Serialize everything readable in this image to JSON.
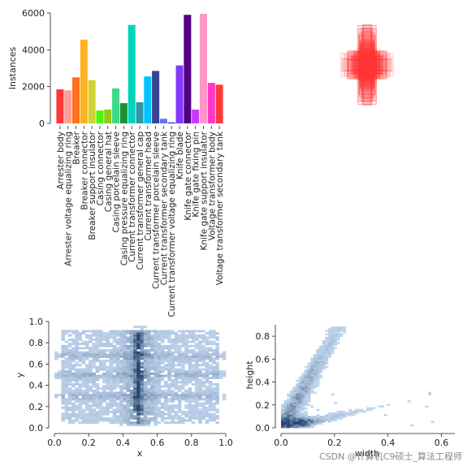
{
  "watermark": "CSDN @计算机C9硕士_算法工程师",
  "chart_data": [
    {
      "type": "bar",
      "ylabel": "Instances",
      "ylim": [
        0,
        6000
      ],
      "yticks": [
        "0",
        "2000",
        "4000",
        "6000"
      ],
      "categories": [
        "Arrester body",
        "Arrester voltage equalizing ring",
        "Breaker",
        "Breaker connector",
        "Breaker support insulator",
        "Casing connector",
        "Casing general hat",
        "Casing porcelain sleeve",
        "Casing pressure equalizing ring",
        "Current transformer connector",
        "Current transformer general cap",
        "Current transformer head",
        "Current transformer porcelain sleeve",
        "Current transformer secondary tank",
        "Current transformer voltage equalizing ring",
        "Knife blade",
        "Knife gate connector",
        "Knife gate fixing pin",
        "Knife gate support insulator",
        "Voltage transformer body",
        "Voltage transformer secondary tank"
      ],
      "values": [
        1850,
        1800,
        2500,
        4550,
        2350,
        700,
        750,
        1900,
        1100,
        5350,
        1150,
        2550,
        2850,
        250,
        50,
        3150,
        5900,
        750,
        5950,
        2200,
        2100
      ],
      "colors": [
        "#ff3838",
        "#ff9d97",
        "#ff701f",
        "#ffb21d",
        "#cfd231",
        "#48f90a",
        "#92cc17",
        "#3ddb86",
        "#1a9334",
        "#00d4bb",
        "#2c99a8",
        "#00c2ff",
        "#344593",
        "#6473ff",
        "#0018ec",
        "#8438ff",
        "#520085",
        "#cb38ff",
        "#ff95c8",
        "#ff37c7",
        "#ff3838"
      ]
    },
    {
      "type": "box-overlay",
      "description_color": "#ff3838",
      "center": [
        0.5,
        0.5
      ]
    },
    {
      "type": "heatmap",
      "xlabel": "x",
      "ylabel": "y",
      "xlim": [
        0.0,
        1.0
      ],
      "ylim": [
        0.0,
        1.0
      ],
      "xticks": [
        "0.0",
        "0.2",
        "0.4",
        "0.6",
        "0.8",
        "1.0"
      ],
      "yticks": [
        "0.0",
        "0.2",
        "0.4",
        "0.6",
        "0.8",
        "1.0"
      ]
    },
    {
      "type": "heatmap",
      "xlabel": "width",
      "ylabel": "height",
      "xlim": [
        0.0,
        0.65
      ],
      "ylim": [
        0.0,
        0.9
      ],
      "xticks": [
        "0.0",
        "0.2",
        "0.4",
        "0.6"
      ],
      "yticks": [
        "0.0",
        "0.2",
        "0.4",
        "0.6",
        "0.8"
      ]
    }
  ]
}
